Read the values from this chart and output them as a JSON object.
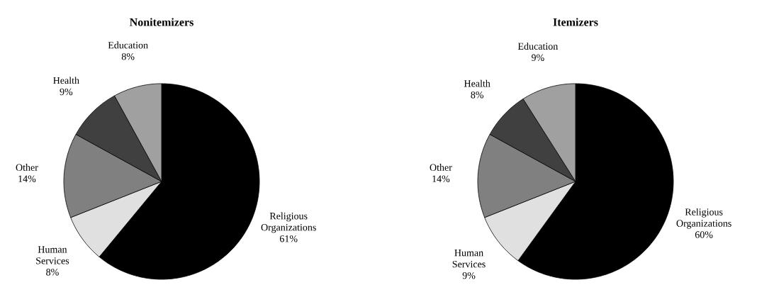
{
  "chart_data": [
    {
      "type": "pie",
      "title": "Nonitemizers",
      "categories": [
        "Religious Organizations",
        "Human Services",
        "Other",
        "Health",
        "Education"
      ],
      "values": [
        61,
        8,
        14,
        9,
        8
      ],
      "value_labels": [
        "61%",
        "8%",
        "14%",
        "9%",
        "8%"
      ],
      "colors": [
        "#000000",
        "#e0e0e0",
        "#808080",
        "#404040",
        "#a0a0a0"
      ]
    },
    {
      "type": "pie",
      "title": "Itemizers",
      "categories": [
        "Religious Organizations",
        "Human Services",
        "Other",
        "Health",
        "Education"
      ],
      "values": [
        60,
        9,
        14,
        8,
        9
      ],
      "value_labels": [
        "60%",
        "9%",
        "14%",
        "8%",
        "9%"
      ],
      "colors": [
        "#000000",
        "#e0e0e0",
        "#808080",
        "#404040",
        "#a0a0a0"
      ]
    }
  ]
}
